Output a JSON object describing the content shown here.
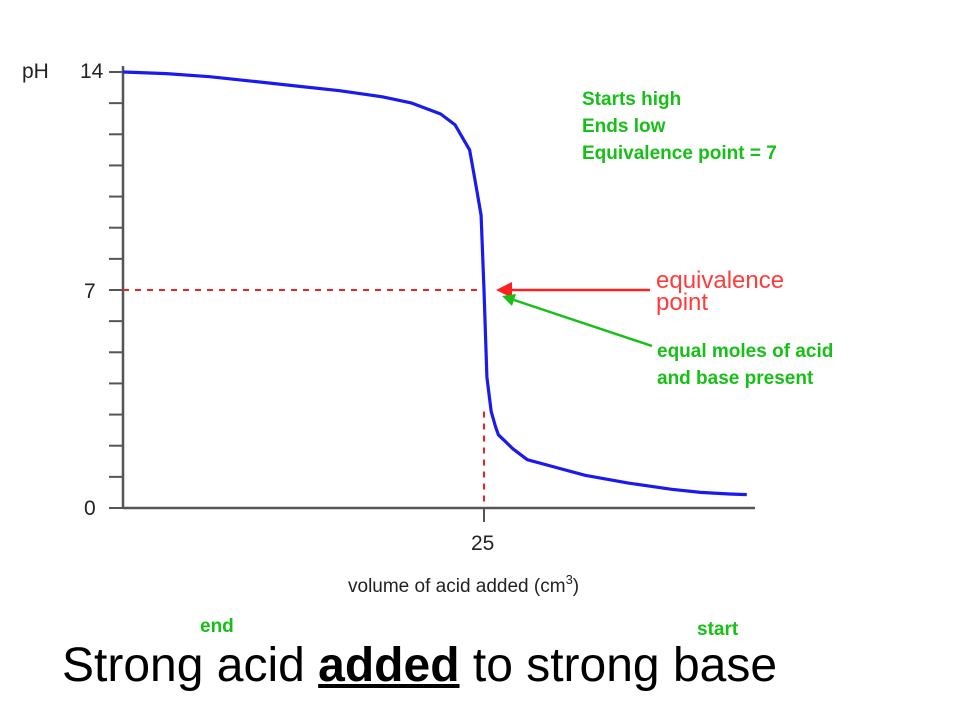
{
  "chart_data": {
    "type": "line",
    "title": "Strong acid added to strong base",
    "title_parts": {
      "before": "Strong acid ",
      "emphasis": "added",
      "after": " to strong base"
    },
    "xlabel": "volume of acid added (cm",
    "xlabel_superscript": "3",
    "xlabel_close": ")",
    "ylabel": "pH",
    "x_ticks": [
      "25"
    ],
    "y_ticks": [
      "0",
      "7",
      "14"
    ],
    "grid": false,
    "series": [
      {
        "color": "#1a1aee",
        "x": [
          0,
          3,
          6,
          9,
          12,
          15,
          18,
          20,
          22,
          23,
          24,
          24.2,
          24.5,
          24.8,
          25,
          25.2,
          25.5,
          25.8,
          26,
          27,
          28,
          30,
          32,
          35,
          38,
          40,
          42,
          43.2
        ],
        "y": [
          14,
          13.95,
          13.85,
          13.7,
          13.55,
          13.4,
          13.2,
          13.0,
          12.65,
          12.3,
          11.5,
          11.0,
          10.2,
          9.4,
          7.0,
          4.2,
          3.1,
          2.6,
          2.35,
          1.9,
          1.55,
          1.3,
          1.05,
          0.8,
          0.6,
          0.5,
          0.45,
          0.43
        ]
      }
    ],
    "equivalence_point": {
      "x": 25,
      "y": 7
    },
    "reference_lines": {
      "color": "#ee2222",
      "style": "dotted"
    },
    "annotations": {
      "equivalence_label": [
        "equivalence",
        "point"
      ],
      "equivalence_arrow_color": "#ff2020",
      "moles_note": [
        "equal moles of acid",
        "and base present"
      ],
      "summary_note": [
        "Starts high",
        "Ends low",
        "Equivalence point = 7"
      ],
      "end_label": "end",
      "start_label": "start",
      "note_color": "#16c016"
    }
  }
}
